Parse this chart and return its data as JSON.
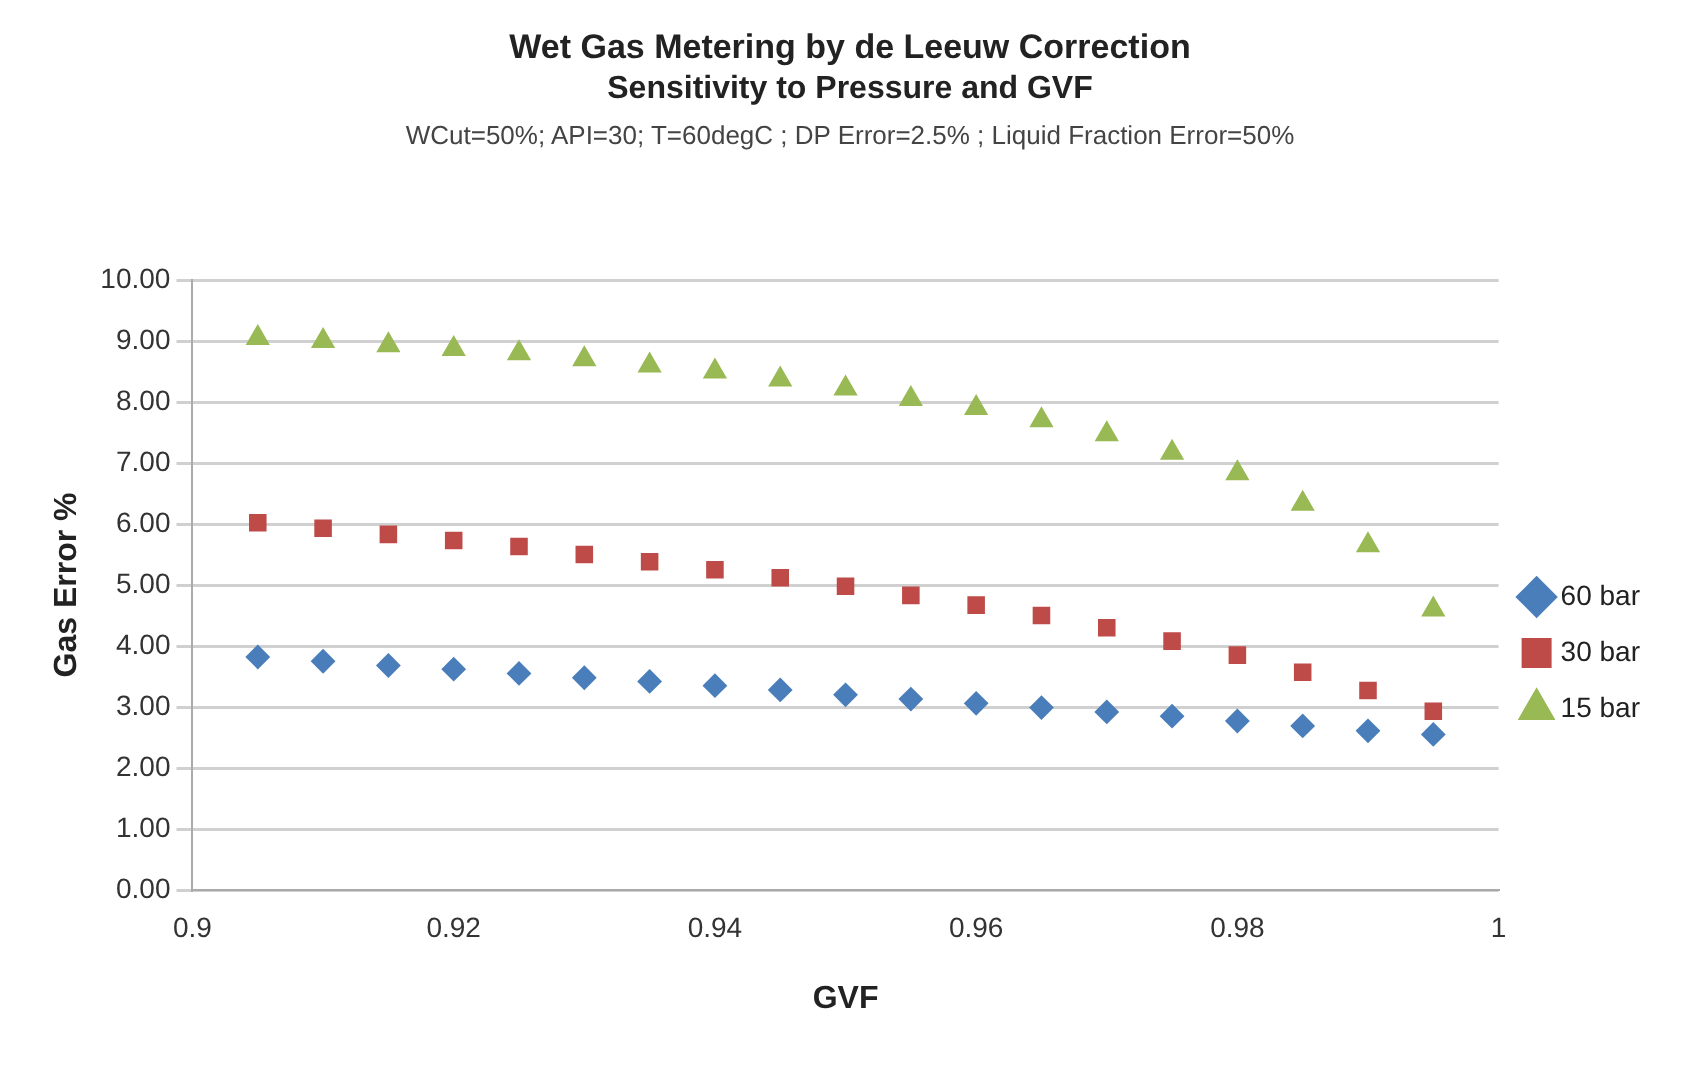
{
  "chart_data": {
    "type": "scatter",
    "title": "Wet Gas  Metering by de Leeuw  Correction",
    "subtitle": "Sensitivity to Pressure and GVF",
    "annotations": [
      "WCut=50%;  API=30; T=60degC ; DP Error=2.5% ; Liquid Fraction Error=50%"
    ],
    "xlabel": "GVF",
    "ylabel": "Gas Error %",
    "x": [
      0.905,
      0.91,
      0.915,
      0.92,
      0.925,
      0.93,
      0.935,
      0.94,
      0.945,
      0.95,
      0.955,
      0.96,
      0.965,
      0.97,
      0.975,
      0.98,
      0.985,
      0.99,
      0.995
    ],
    "series": [
      {
        "name": "60 bar",
        "color": "#4a7ebb",
        "marker": "diamond",
        "values": [
          3.82,
          3.75,
          3.68,
          3.62,
          3.55,
          3.48,
          3.42,
          3.35,
          3.28,
          3.2,
          3.13,
          3.06,
          2.99,
          2.92,
          2.85,
          2.77,
          2.69,
          2.61,
          2.55
        ]
      },
      {
        "name": "30 bar",
        "color": "#be4b48",
        "marker": "square",
        "values": [
          6.02,
          5.93,
          5.83,
          5.73,
          5.63,
          5.5,
          5.38,
          5.25,
          5.12,
          4.98,
          4.83,
          4.67,
          4.5,
          4.3,
          4.08,
          3.85,
          3.57,
          3.27,
          2.93
        ]
      },
      {
        "name": "15 bar",
        "color": "#98b954",
        "marker": "triangle",
        "values": [
          9.05,
          9.0,
          8.93,
          8.87,
          8.8,
          8.7,
          8.6,
          8.5,
          8.37,
          8.22,
          8.05,
          7.9,
          7.7,
          7.47,
          7.17,
          6.83,
          6.33,
          5.65,
          4.6
        ]
      }
    ],
    "xlim": [
      0.9,
      1
    ],
    "xticks": [
      0.9,
      0.92,
      0.94,
      0.96,
      0.98,
      1
    ],
    "ylim": [
      0,
      10
    ],
    "yticks": [
      {
        "value": 0,
        "label": "0.00"
      },
      {
        "value": 1,
        "label": "1.00"
      },
      {
        "value": 2,
        "label": "2.00"
      },
      {
        "value": 3,
        "label": "3.00"
      },
      {
        "value": 4,
        "label": "4.00"
      },
      {
        "value": 5,
        "label": "5.00"
      },
      {
        "value": 6,
        "label": "6.00"
      },
      {
        "value": 7,
        "label": "7.00"
      },
      {
        "value": 8,
        "label": "8.00"
      },
      {
        "value": 9,
        "label": "9.00"
      },
      {
        "value": 10,
        "label": "10.00"
      }
    ],
    "grid": "y",
    "legend": "right"
  }
}
